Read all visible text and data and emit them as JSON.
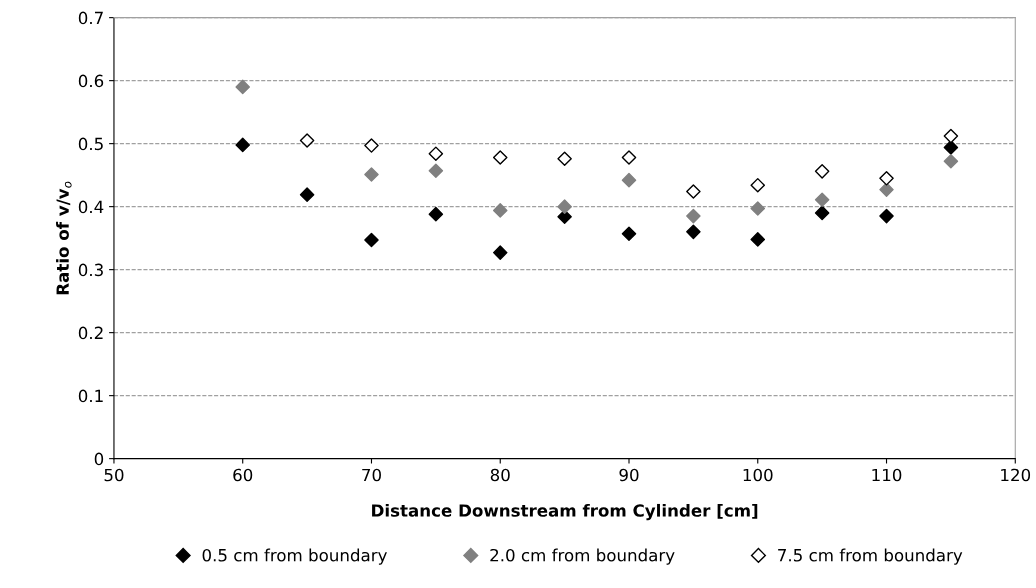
{
  "chart_data": {
    "type": "scatter",
    "xlabel": "Distance Downstream from Cylinder [cm]",
    "ylabel": "Ratio of v/v$_{o}$",
    "x": [
      60,
      65,
      70,
      75,
      80,
      85,
      90,
      95,
      100,
      105,
      110,
      115
    ],
    "series": [
      {
        "name": "0.5 cm from boundary",
        "color": "#000000",
        "values": [
          0.498,
          0.419,
          0.347,
          0.388,
          0.327,
          0.384,
          0.357,
          0.36,
          0.348,
          0.39,
          0.385,
          0.494
        ]
      },
      {
        "name": "2.0 cm from boundary",
        "color": "#808080",
        "values": [
          0.59,
          null,
          0.451,
          0.457,
          0.394,
          0.4,
          0.442,
          0.385,
          0.397,
          0.411,
          0.427,
          0.472
        ]
      },
      {
        "name": "7.5 cm from boundary",
        "color": "#ffffff",
        "values": [
          null,
          0.505,
          0.497,
          0.484,
          0.478,
          0.476,
          0.478,
          0.424,
          0.434,
          0.456,
          0.445,
          0.512
        ]
      }
    ],
    "xlim": [
      50,
      120
    ],
    "xticks": [
      50,
      60,
      70,
      80,
      90,
      100,
      110,
      120
    ],
    "ylim": [
      0,
      0.7
    ],
    "yticks": [
      0,
      0.1,
      0.2,
      0.3,
      0.4,
      0.5,
      0.6,
      0.7
    ],
    "grid": "y",
    "legend": "bottom",
    "marker": "diamond"
  }
}
